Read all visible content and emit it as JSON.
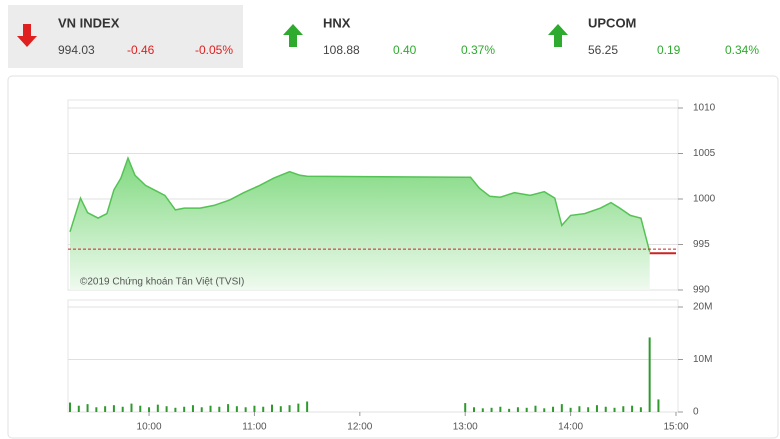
{
  "header": {
    "indices": [
      {
        "name": "VN INDEX",
        "value": "994.03",
        "change": "-0.46",
        "percent": "-0.05%",
        "direction": "down",
        "color": "#e02020",
        "highlight": "#ececec"
      },
      {
        "name": "HNX",
        "value": "108.88",
        "change": "0.40",
        "percent": "0.37%",
        "direction": "up",
        "color": "#2eaa2e"
      },
      {
        "name": "UPCOM",
        "value": "56.25",
        "change": "0.19",
        "percent": "0.34%",
        "direction": "up",
        "color": "#2eaa2e"
      }
    ]
  },
  "chart_data": [
    {
      "type": "area",
      "annotation": "©2019 Chứng khoán Tân Việt (TVSI)",
      "xlim": [
        "09:15",
        "15:00"
      ],
      "ylim": [
        990,
        1010
      ],
      "yticks": [
        990,
        995,
        1000,
        1005,
        1010
      ],
      "grid": true,
      "reference": {
        "value": 994.49,
        "color": "#cc2222"
      },
      "series": [
        {
          "color": "#55c255",
          "x": [
            "09:15",
            "09:21",
            "09:25",
            "09:31",
            "09:36",
            "09:40",
            "09:44",
            "09:48",
            "09:52",
            "09:58",
            "10:03",
            "10:09",
            "10:15",
            "10:20",
            "10:29",
            "10:37",
            "10:46",
            "10:54",
            "11:03",
            "11:11",
            "11:20",
            "11:26",
            "11:30",
            "13:00",
            "13:03",
            "13:08",
            "13:14",
            "13:20",
            "13:28",
            "13:37",
            "13:45",
            "13:51",
            "13:55",
            "14:00",
            "14:08",
            "14:17",
            "14:23",
            "14:28",
            "14:34",
            "14:40",
            "14:45"
          ],
          "values": [
            996.4,
            1000.1,
            998.5,
            997.9,
            998.4,
            1001.0,
            1002.3,
            1004.5,
            1002.6,
            1001.5,
            1001.0,
            1000.4,
            998.8,
            999.0,
            999.0,
            999.3,
            999.9,
            1000.7,
            1001.5,
            1002.3,
            1003.0,
            1002.6,
            1002.5,
            1002.4,
            1002.4,
            1001.2,
            1000.3,
            1000.2,
            1000.7,
            1000.4,
            1000.8,
            1000.1,
            997.1,
            998.2,
            998.4,
            999.0,
            999.6,
            999.0,
            998.2,
            997.9,
            994.2
          ]
        },
        {
          "color": "#cc2222",
          "x": [
            "14:45",
            "15:00"
          ],
          "values": [
            994.03,
            994.03
          ]
        }
      ]
    },
    {
      "type": "bar",
      "color": "#2e9a2e",
      "xlim": [
        "09:15",
        "15:00"
      ],
      "xticks": [
        "10:00",
        "11:00",
        "12:00",
        "13:00",
        "14:00",
        "15:00"
      ],
      "ylim": [
        0,
        20000000
      ],
      "yticks": [
        0,
        {
          "value": 10000000,
          "label": "10M"
        },
        {
          "value": 20000000,
          "label": "20M"
        }
      ],
      "x": [
        "09:15",
        "09:20",
        "09:25",
        "09:30",
        "09:35",
        "09:40",
        "09:45",
        "09:50",
        "09:55",
        "10:00",
        "10:05",
        "10:10",
        "10:15",
        "10:20",
        "10:25",
        "10:30",
        "10:35",
        "10:40",
        "10:45",
        "10:50",
        "10:55",
        "11:00",
        "11:05",
        "11:10",
        "11:15",
        "11:20",
        "11:25",
        "11:30",
        "13:00",
        "13:05",
        "13:10",
        "13:15",
        "13:20",
        "13:25",
        "13:30",
        "13:35",
        "13:40",
        "13:45",
        "13:50",
        "13:55",
        "14:00",
        "14:05",
        "14:10",
        "14:15",
        "14:20",
        "14:25",
        "14:30",
        "14:35",
        "14:40",
        "14:45",
        "14:50"
      ],
      "values": [
        1800000,
        1200000,
        1500000,
        900000,
        1100000,
        1300000,
        1000000,
        1600000,
        1200000,
        900000,
        1400000,
        1100000,
        800000,
        1000000,
        1300000,
        900000,
        1200000,
        1000000,
        1500000,
        1100000,
        900000,
        1200000,
        1000000,
        1400000,
        1100000,
        1300000,
        1600000,
        2000000,
        1700000,
        900000,
        700000,
        800000,
        1000000,
        600000,
        900000,
        800000,
        1200000,
        700000,
        1000000,
        1500000,
        800000,
        1100000,
        900000,
        1300000,
        1000000,
        800000,
        1100000,
        1200000,
        900000,
        14200000,
        2400000
      ]
    }
  ]
}
